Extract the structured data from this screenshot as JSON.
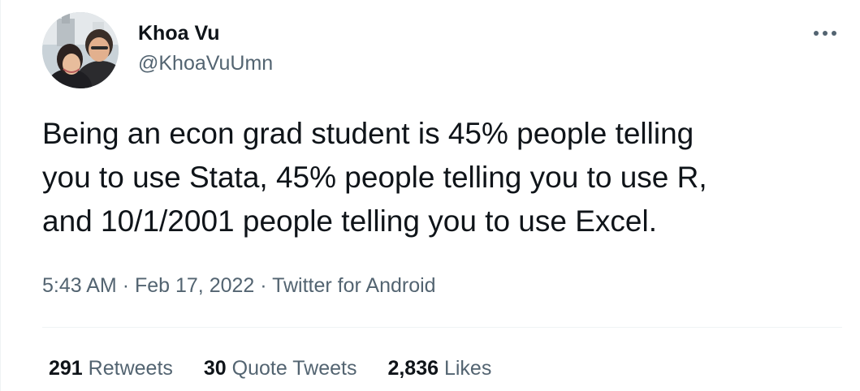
{
  "author": {
    "name": "Khoa Vu",
    "handle": "@KhoaVuUmn"
  },
  "tweet": {
    "text": "Being an econ grad student is 45% people telling\nyou to use Stata, 45% people telling you to use R,\nand 10/1/2001 people telling you to use Excel."
  },
  "meta": {
    "time": "5:43 AM",
    "separator": "·",
    "date": "Feb 17, 2022",
    "source": "Twitter for Android"
  },
  "stats": {
    "retweets": {
      "count": "291",
      "label": "Retweets"
    },
    "quotes": {
      "count": "30",
      "label": "Quote Tweets"
    },
    "likes": {
      "count": "2,836",
      "label": "Likes"
    }
  },
  "icons": {
    "more": "more-dots-icon"
  },
  "colors": {
    "text": "#0f1419",
    "secondary": "#536471",
    "divider": "#eff3f4"
  }
}
